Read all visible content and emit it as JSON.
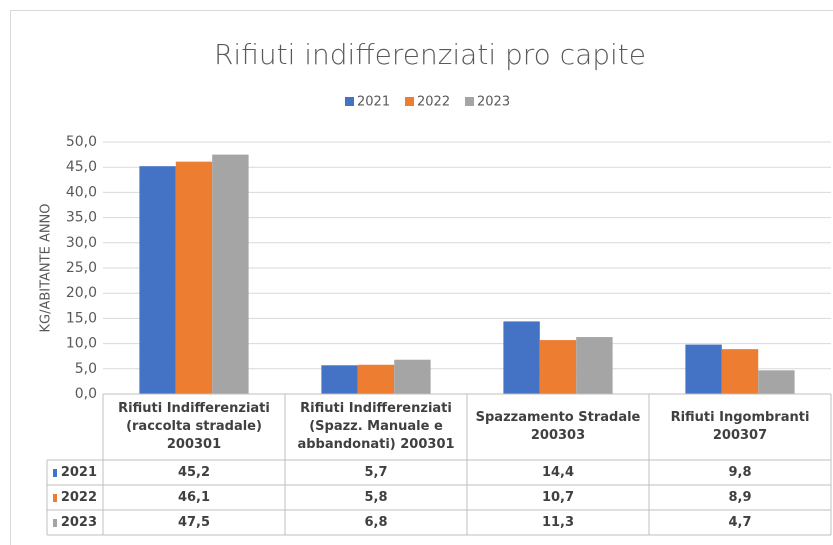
{
  "chart_data": {
    "type": "bar",
    "title": "Rifiuti indifferenziati pro capite",
    "y_label": "KG/ABITANTE ANNO",
    "categories": [
      "Rifiuti Indifferenziati (raccolta stradale) 200301",
      "Rifiuti Indifferenziati (Spazz. Manuale e abbandonati) 200301",
      "Spazzamento Stradale 200303",
      "Rifiuti Ingombranti 200307"
    ],
    "series": [
      {
        "name": "2021",
        "color": "#4472c4",
        "values": [
          45.2,
          5.7,
          14.4,
          9.8
        ],
        "value_labels": [
          "45,2",
          "5,7",
          "14,4",
          "9,8"
        ]
      },
      {
        "name": "2022",
        "color": "#ed7d31",
        "values": [
          46.1,
          5.8,
          10.7,
          8.9
        ],
        "value_labels": [
          "46,1",
          "5,8",
          "10,7",
          "8,9"
        ]
      },
      {
        "name": "2023",
        "color": "#a5a5a5",
        "values": [
          47.5,
          6.8,
          11.3,
          4.7
        ],
        "value_labels": [
          "47,5",
          "6,8",
          "11,3",
          "4,7"
        ]
      }
    ],
    "ylim": [
      0,
      50
    ],
    "yticks": [
      {
        "value": 0,
        "label": "0,0"
      },
      {
        "value": 5,
        "label": "5,0"
      },
      {
        "value": 10,
        "label": "10,0"
      },
      {
        "value": 15,
        "label": "15,0"
      },
      {
        "value": 20,
        "label": "20,0"
      },
      {
        "value": 25,
        "label": "25,0"
      },
      {
        "value": 30,
        "label": "30,0"
      },
      {
        "value": 35,
        "label": "35,0"
      },
      {
        "value": 40,
        "label": "40,0"
      },
      {
        "value": 45,
        "label": "45,0"
      },
      {
        "value": 50,
        "label": "50,0"
      }
    ],
    "grid": true,
    "legend": "top"
  }
}
